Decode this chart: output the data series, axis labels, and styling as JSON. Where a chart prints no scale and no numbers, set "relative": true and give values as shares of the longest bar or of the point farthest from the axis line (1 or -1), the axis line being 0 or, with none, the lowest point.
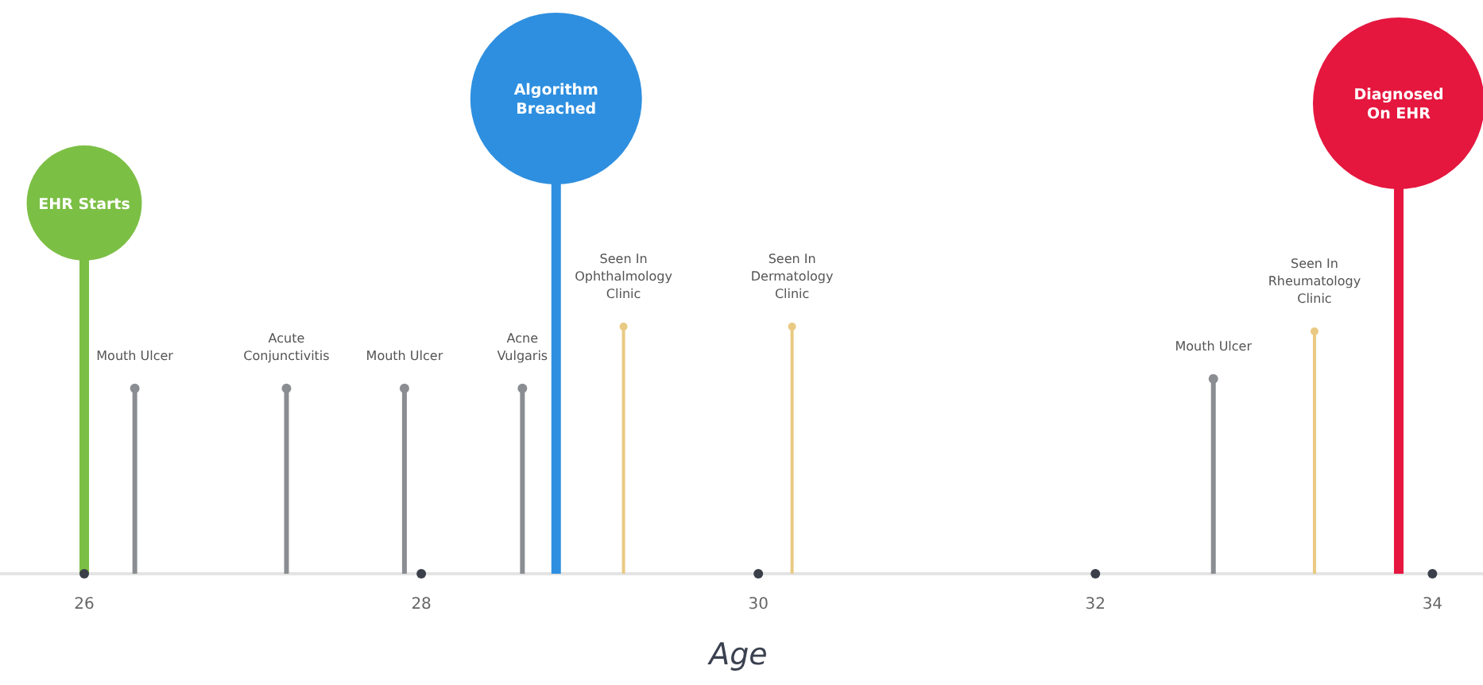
{
  "chart_data": {
    "type": "lollipop",
    "relative": true,
    "xlabel": "Age",
    "xlim": [
      25.5,
      34.3
    ],
    "xticks": [
      26,
      28,
      30,
      32,
      34
    ],
    "grid": false,
    "series": [
      {
        "color": "#8a8d91",
        "x": [
          26.3,
          27.2,
          27.9,
          28.6,
          32.7
        ],
        "values": [
          0.39,
          0.39,
          0.39,
          0.39,
          0.41
        ]
      },
      {
        "color": "#e9c983",
        "x": [
          29.2,
          30.2,
          33.3
        ],
        "values": [
          0.52,
          0.52,
          0.51
        ]
      },
      {
        "colors": [
          "#7cbf45",
          "#2e8fe0",
          "#e5173f"
        ],
        "marker": "circle",
        "x": [
          26.0,
          28.8,
          33.8
        ],
        "values": [
          0.78,
          1,
          0.99
        ],
        "sizes": [
          0.45,
          1,
          1
        ]
      }
    ],
    "annotations": [
      {
        "text": "EHR Starts",
        "x": 26.0,
        "y": 0.78
      },
      {
        "text": "Mouth Ulcer",
        "x": 26.3,
        "y": 0.39
      },
      {
        "text": "Acute Conjunctivitis",
        "x": 27.2,
        "y": 0.39
      },
      {
        "text": "Mouth Ulcer",
        "x": 27.9,
        "y": 0.39
      },
      {
        "text": "Acne Vulgaris",
        "x": 28.6,
        "y": 0.39
      },
      {
        "text": "Algorithm Breached",
        "x": 28.8,
        "y": 1
      },
      {
        "text": "Seen In Ophthalmology Clinic",
        "x": 29.2,
        "y": 0.52
      },
      {
        "text": "Seen In Dermatology Clinic",
        "x": 30.2,
        "y": 0.52
      },
      {
        "text": "Mouth Ulcer",
        "x": 32.7,
        "y": 0.41
      },
      {
        "text": "Seen In Rheumatology Clinic",
        "x": 33.3,
        "y": 0.51
      },
      {
        "text": "Diagnosed On EHR",
        "x": 33.8,
        "y": 0.99
      }
    ]
  }
}
